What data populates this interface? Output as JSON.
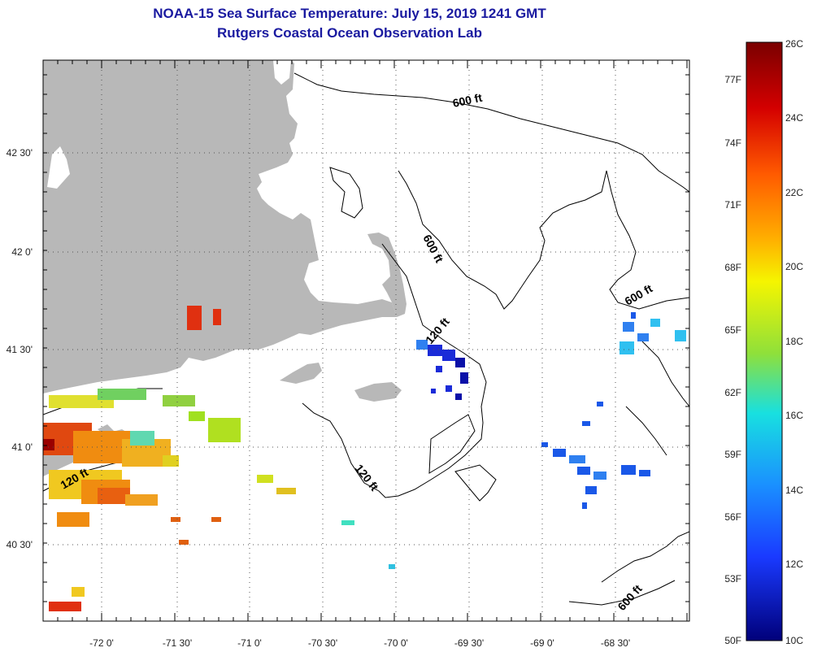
{
  "header": {
    "title": "NOAA-15 Sea Surface Temperature:  July 15, 2019 1241 GMT",
    "subtitle": "Rutgers Coastal Ocean Observation Lab"
  },
  "axes": {
    "lon_labels": [
      "-72 0'",
      "-71 30'",
      "-71 0'",
      "-70 30'",
      "-70 0'",
      "-69 30'",
      "-69 0'",
      "-68 30'"
    ],
    "lat_labels": [
      "42 30'",
      "42 0'",
      "41 30'",
      "41 0'",
      "40 30'"
    ]
  },
  "contours": {
    "label_600_a": "600 ft",
    "label_600_b": "600 ft",
    "label_600_c": "600 ft",
    "label_600_d": "600 ft",
    "label_120_a": "120 ft",
    "label_120_b": "120 ft",
    "label_120_c": "120 ft"
  },
  "colorbar": {
    "celsius_labels": [
      "26C",
      "24C",
      "22C",
      "20C",
      "18C",
      "16C",
      "14C",
      "12C",
      "10C"
    ],
    "fahrenheit_labels": [
      "77F",
      "74F",
      "71F",
      "68F",
      "65F",
      "62F",
      "59F",
      "56F",
      "53F",
      "50F"
    ],
    "colors": [
      "#7a0000",
      "#d40000",
      "#ff5a00",
      "#ffb000",
      "#f5f500",
      "#8fe03a",
      "#18e0e0",
      "#1a90ff",
      "#1a3aff",
      "#00007a"
    ]
  },
  "colors": {
    "land": "#b8b8b8",
    "title": "#1a1aa0",
    "cold": "#1a2bd8",
    "cool": "#2f80f0",
    "warm": "#f0a020",
    "hot": "#e03010"
  }
}
